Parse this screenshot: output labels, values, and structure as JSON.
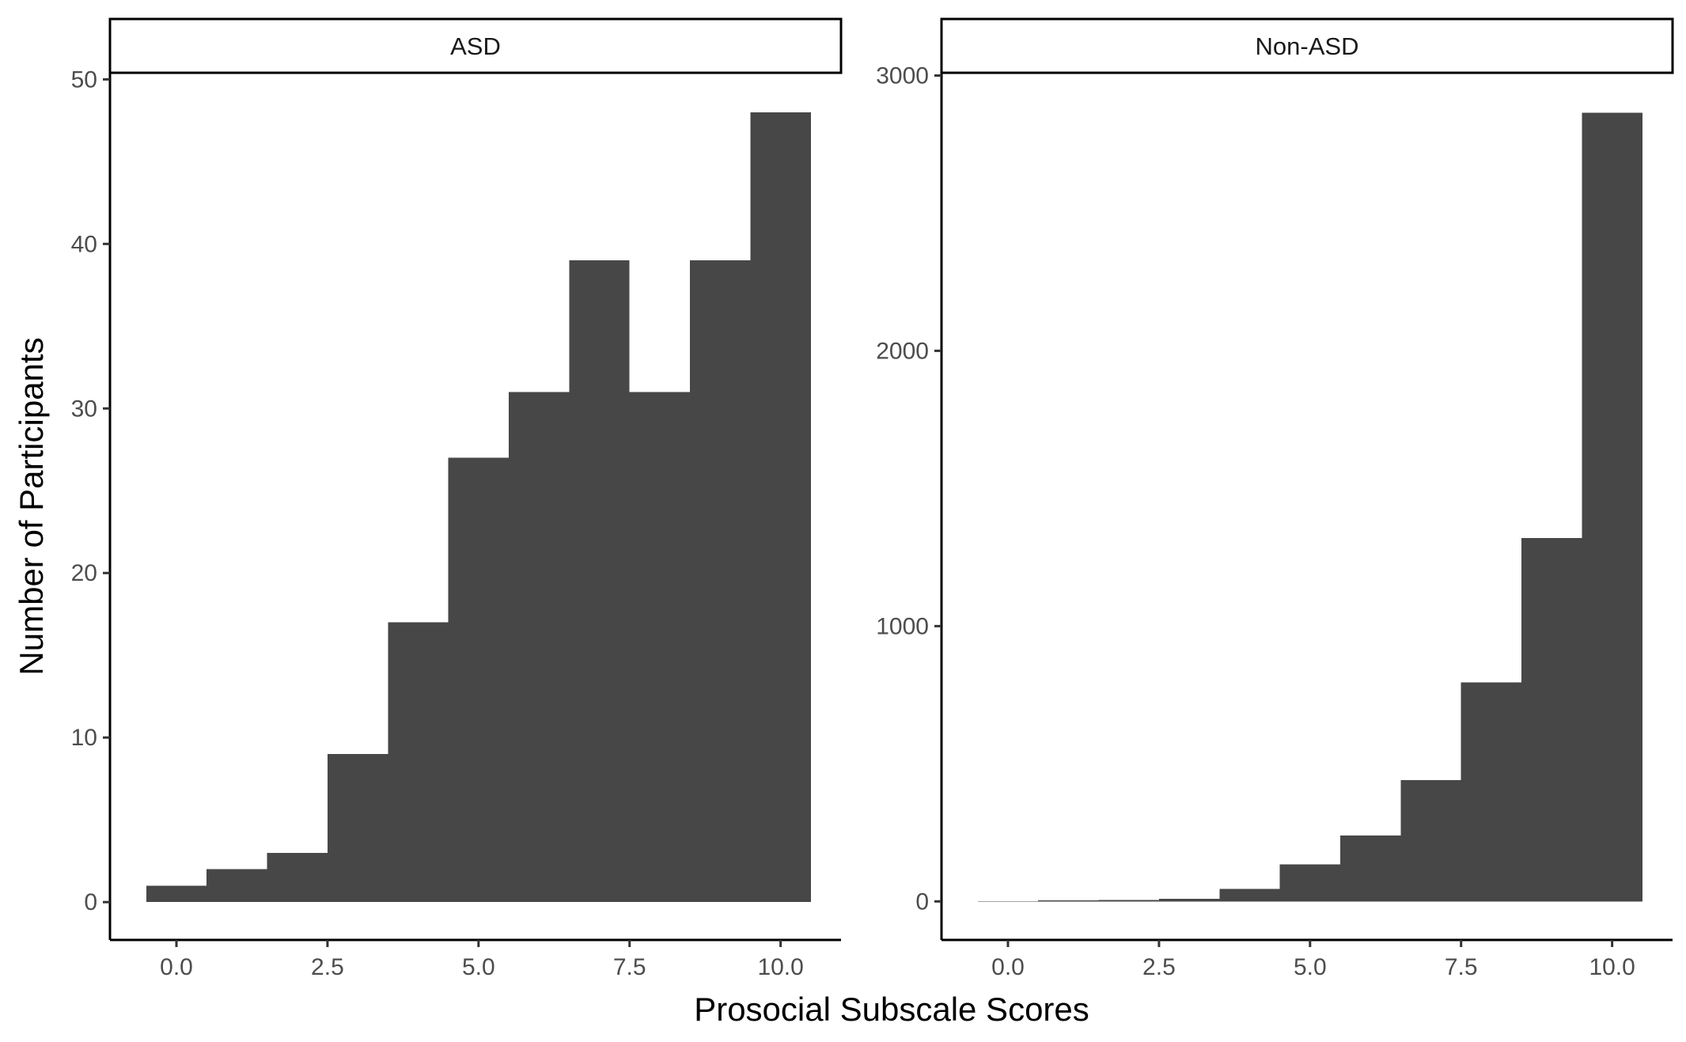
{
  "chart_data": {
    "type": "bar",
    "histogram": true,
    "xlabel": "Prosocial Subscale Scores",
    "ylabel": "Number of Participants",
    "bin_centers": [
      0,
      1,
      2,
      3,
      4,
      5,
      6,
      7,
      8,
      9,
      10
    ],
    "bin_width": 1,
    "grid": false,
    "bar_color": "#474747",
    "xlim": [
      -1.1,
      11.0
    ],
    "x_ticks": [
      0,
      2.5,
      5,
      7.5,
      10
    ],
    "x_tick_labels": [
      "0.0",
      "2.5",
      "5.0",
      "7.5",
      "10.0"
    ],
    "panels": [
      {
        "label": "ASD",
        "values": [
          1,
          2,
          3,
          9,
          17,
          27,
          31,
          39,
          31,
          39,
          48
        ],
        "ylim": [
          -2.3,
          50.4
        ],
        "y_ticks": [
          0,
          10,
          20,
          30,
          40,
          50
        ],
        "y_tick_labels": [
          "0",
          "10",
          "20",
          "30",
          "40",
          "50"
        ]
      },
      {
        "label": "Non-ASD",
        "values": [
          1,
          3,
          5,
          10,
          45,
          135,
          240,
          440,
          795,
          1320,
          2865
        ],
        "ylim": [
          -140,
          3010
        ],
        "y_ticks": [
          0,
          1000,
          2000,
          3000
        ],
        "y_tick_labels": [
          "0",
          "1000",
          "2000",
          "3000"
        ]
      }
    ]
  }
}
